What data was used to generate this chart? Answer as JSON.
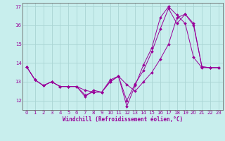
{
  "xlabel": "Windchill (Refroidissement éolien,°C)",
  "ylabel": "",
  "background_color": "#c8eeed",
  "grid_color": "#aad4d3",
  "line_color": "#990099",
  "ylim": [
    11.5,
    17.2
  ],
  "xlim": [
    -0.5,
    23.5
  ],
  "yticks": [
    12,
    13,
    14,
    15,
    16,
    17
  ],
  "xticks": [
    0,
    1,
    2,
    3,
    4,
    5,
    6,
    7,
    8,
    9,
    10,
    11,
    12,
    13,
    14,
    15,
    16,
    17,
    18,
    19,
    20,
    21,
    22,
    23
  ],
  "series": [
    {
      "x": [
        0,
        1,
        2,
        3,
        4,
        5,
        6,
        7,
        8,
        9,
        10,
        11,
        12,
        13,
        14,
        15,
        16,
        17,
        18,
        19,
        20,
        21,
        22,
        23
      ],
      "y": [
        13.8,
        13.1,
        12.8,
        13.0,
        12.75,
        12.75,
        12.75,
        12.2,
        12.55,
        12.45,
        13.1,
        13.3,
        11.7,
        12.8,
        13.9,
        14.8,
        16.4,
        17.0,
        16.55,
        16.1,
        14.3,
        13.75,
        13.75,
        13.75
      ]
    },
    {
      "x": [
        0,
        1,
        2,
        3,
        4,
        5,
        6,
        7,
        8,
        9,
        10,
        11,
        12,
        13,
        14,
        15,
        16,
        17,
        18,
        19,
        20,
        21,
        22,
        23
      ],
      "y": [
        13.8,
        13.1,
        12.8,
        13.0,
        12.75,
        12.75,
        12.75,
        12.55,
        12.45,
        12.45,
        13.0,
        13.3,
        12.85,
        12.5,
        13.0,
        13.5,
        14.2,
        15.0,
        16.4,
        16.6,
        16.0,
        13.8,
        13.75,
        13.75
      ]
    },
    {
      "x": [
        0,
        1,
        2,
        3,
        4,
        5,
        6,
        7,
        8,
        9,
        10,
        11,
        12,
        13,
        14,
        15,
        16,
        17,
        18,
        19,
        20,
        21,
        22,
        23
      ],
      "y": [
        13.8,
        13.1,
        12.8,
        13.0,
        12.75,
        12.75,
        12.75,
        12.3,
        12.45,
        12.45,
        13.0,
        13.3,
        12.0,
        12.9,
        13.6,
        14.6,
        15.8,
        16.9,
        16.1,
        16.6,
        16.1,
        13.8,
        13.75,
        13.75
      ]
    }
  ],
  "tick_fontsize": 5,
  "xlabel_fontsize": 5.5,
  "spine_color": "#666666"
}
